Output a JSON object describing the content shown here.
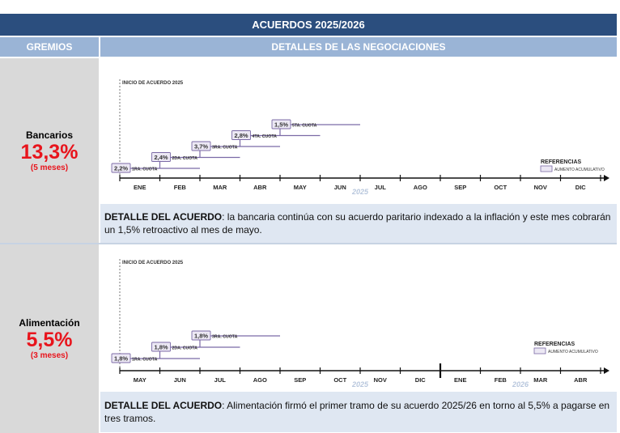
{
  "header": {
    "title": "ACUERDOS 2025/2026"
  },
  "subheader": {
    "col1": "GREMIOS",
    "col2": "DETALLES DE LAS NEGOCIACIONES"
  },
  "rows": [
    {
      "gremio": "Bancarios",
      "percent": "13,3%",
      "duration": "(5 meses)",
      "detail_label": "DETALLE DEL ACUERDO",
      "detail_text": ": la bancaria continúa con su acuerdo paritario indexado a la inflación y este mes cobrarán un 1,5% retroactivo al mes de mayo."
    },
    {
      "gremio": "Alimentación",
      "percent": "5,5%",
      "duration": "(3 meses)",
      "detail_label": "DETALLE DEL ACUERDO",
      "detail_text": ": Alimentación firmó el primer tramo de su acuerdo 2025/26 en torno al 5,5% a pagarse en tres tramos."
    }
  ],
  "chart_data": [
    {
      "type": "line",
      "start_label": "INICIO DE ACUERDO 2025",
      "months": [
        "ENE",
        "FEB",
        "MAR",
        "ABR",
        "MAY",
        "JUN",
        "JUL",
        "AGO",
        "SEP",
        "OCT",
        "NOV",
        "DIC"
      ],
      "year_labels": [
        {
          "after_month": "JUN",
          "label": "2025"
        }
      ],
      "year_divider_after": null,
      "steps": [
        {
          "month": "ENE",
          "value": 2.2,
          "label": "2,2%",
          "cuota": "1RA. CUOTA"
        },
        {
          "month": "FEB",
          "value": 2.4,
          "label": "2,4%",
          "cuota": "2DA. CUOTA"
        },
        {
          "month": "MAR",
          "value": 3.7,
          "label": "3,7%",
          "cuota": "3RA. CUOTA"
        },
        {
          "month": "ABR",
          "value": 2.8,
          "label": "2,8%",
          "cuota": "4TA. CUOTA"
        },
        {
          "month": "MAY",
          "value": 1.5,
          "label": "1,5%",
          "cuota": "5TA. CUOTA"
        }
      ],
      "legend": {
        "title": "REFERENCIAS",
        "item": "AUMENTO ACUMULATIVO",
        "placement": "bottom-right"
      }
    },
    {
      "type": "line",
      "start_label": "INICIO DE ACUERDO 2025",
      "months": [
        "MAY",
        "JUN",
        "JUL",
        "AGO",
        "SEP",
        "OCT",
        "NOV",
        "DIC",
        "ENE",
        "FEB",
        "MAR",
        "ABR"
      ],
      "year_labels": [
        {
          "after_month": "OCT",
          "label": "2025"
        },
        {
          "after_month": "FEB",
          "label": "2026"
        }
      ],
      "year_divider_after": "DIC",
      "steps": [
        {
          "month": "MAY",
          "value": 1.8,
          "label": "1,8%",
          "cuota": "1RA. CUOTA"
        },
        {
          "month": "JUN",
          "value": 1.8,
          "label": "1,8%",
          "cuota": "2DA. CUOTA"
        },
        {
          "month": "JUL",
          "value": 1.8,
          "label": "1,8%",
          "cuota": "3RA. CUOTA"
        }
      ],
      "legend": {
        "title": "REFERENCIAS",
        "item": "AUMENTO ACUMULATIVO",
        "placement": "bottom-right"
      }
    }
  ],
  "colors": {
    "header": "#2b4e7e",
    "subheader": "#9ab4d6",
    "accent_red": "#e8141c",
    "step": "#7b6aa6",
    "detail_bg": "#dfe7f2",
    "left_bg": "#d9d9d9"
  }
}
